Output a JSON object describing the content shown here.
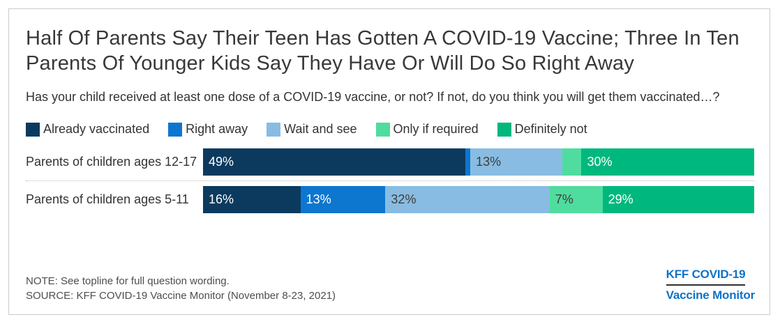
{
  "title": "Half Of Parents Say Their Teen Has Gotten A COVID-19 Vaccine; Three In Ten Parents Of Younger Kids Say They Have Or Will Do So Right Away",
  "subtitle": "Has your child received at least one dose of a COVID-19 vaccine, or not? If not, do you think you will get them vaccinated…?",
  "chart_data": {
    "type": "bar",
    "orientation": "horizontal_stacked",
    "title": "Half Of Parents Say Their Teen Has Gotten A COVID-19 Vaccine; Three In Ten Parents Of Younger Kids Say They Have Or Will Do So Right Away",
    "categories": [
      "Parents of children ages 12-17",
      "Parents of children ages 5-11"
    ],
    "series": [
      {
        "name": "Already vaccinated",
        "color": "#0c3a5e",
        "label_color": "#ffffff",
        "values": [
          49,
          16
        ],
        "labels": [
          "49%",
          "16%"
        ]
      },
      {
        "name": "Right away",
        "color": "#0d76cf",
        "label_color": "#ffffff",
        "values": [
          1,
          13
        ],
        "labels": [
          "",
          "13%"
        ]
      },
      {
        "name": "Wait and see",
        "color": "#89bce2",
        "label_color": "#3d3d3d",
        "values": [
          13,
          32
        ],
        "labels": [
          "13%",
          "32%"
        ]
      },
      {
        "name": "Only if required",
        "color": "#4fdc9f",
        "label_color": "#3d3d3d",
        "values": [
          4,
          7
        ],
        "labels": [
          "",
          "7%"
        ]
      },
      {
        "name": "Definitely not",
        "color": "#00b87d",
        "label_color": "#ffffff",
        "values": [
          30,
          29
        ],
        "labels": [
          "30%",
          "29%"
        ]
      }
    ],
    "legend_position": "top",
    "grid": false,
    "xlim": [
      0,
      97
    ],
    "notes": "Unlabeled segments: ages 12-17 Right away = 1%, Only if required = 4%"
  },
  "footer": {
    "note": "NOTE: See topline for full question wording.",
    "source": "SOURCE: KFF COVID-19 Vaccine Monitor (November 8-23, 2021)"
  },
  "logo": {
    "line1": "KFF COVID-19",
    "line2": "Vaccine Monitor",
    "color": "#0d72c6"
  },
  "colors": {
    "card_border": "#cbcbcb",
    "title_text": "#383838",
    "body_text": "#333333",
    "footnote_text": "#4d4d4d",
    "separator": "#b9b9b9"
  }
}
